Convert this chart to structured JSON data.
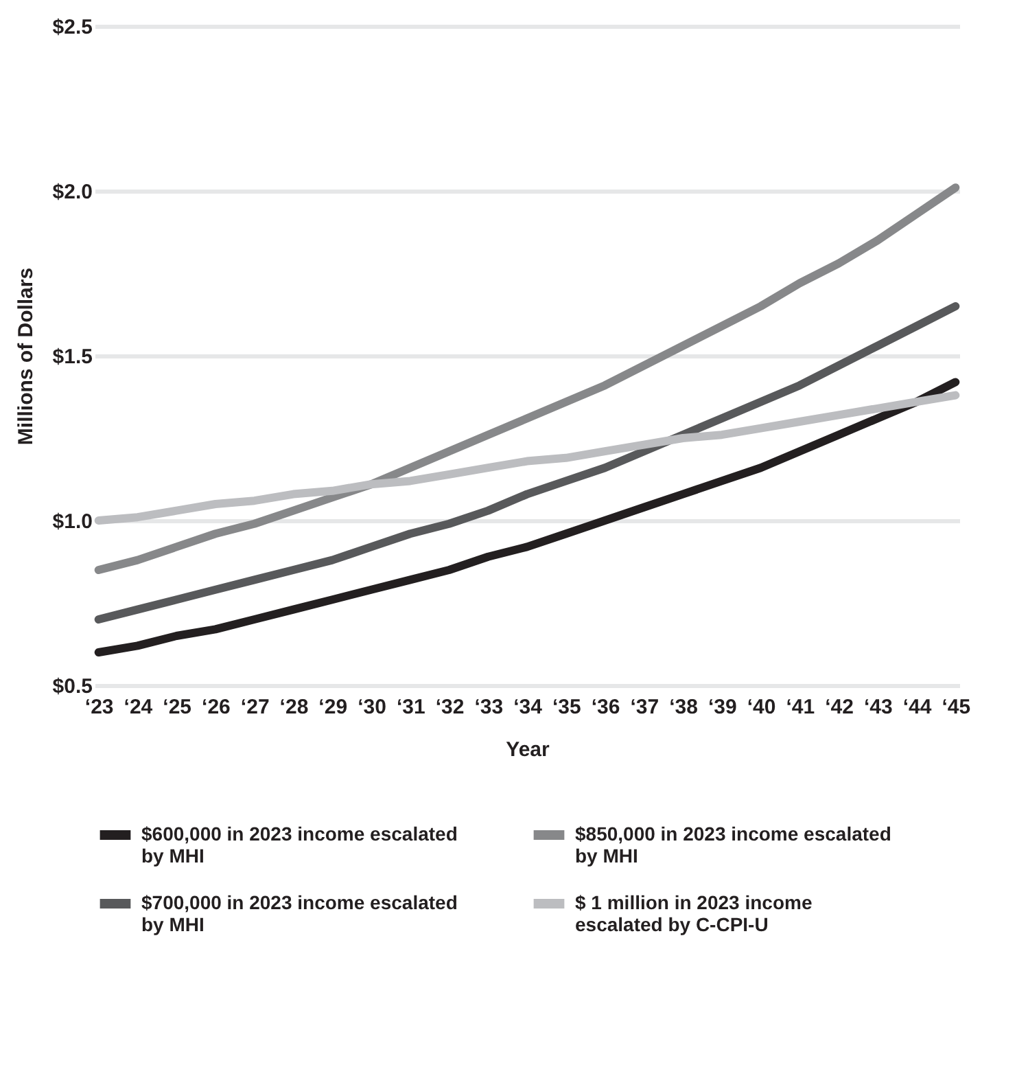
{
  "chart_data": {
    "type": "line",
    "xlabel": "Year",
    "ylabel": "Millions of Dollars",
    "categories": [
      "‘23",
      "‘24",
      "‘25",
      "‘26",
      "‘27",
      "‘28",
      "‘29",
      "‘30",
      "‘31",
      "‘32",
      "‘33",
      "‘34",
      "‘35",
      "‘36",
      "‘37",
      "‘38",
      "‘39",
      "‘40",
      "‘41",
      "‘42",
      "‘43",
      "‘44",
      "‘45"
    ],
    "series": [
      {
        "name": "$600,000 in 2023 income escalated by MHI",
        "color": "#231f20",
        "values": [
          0.6,
          0.62,
          0.65,
          0.67,
          0.7,
          0.73,
          0.76,
          0.79,
          0.82,
          0.85,
          0.89,
          0.92,
          0.96,
          1.0,
          1.04,
          1.08,
          1.12,
          1.16,
          1.21,
          1.26,
          1.31,
          1.36,
          1.42
        ]
      },
      {
        "name": "$850,000 in 2023 income escalated by MHI",
        "color": "#87888a",
        "values": [
          0.85,
          0.88,
          0.92,
          0.96,
          0.99,
          1.03,
          1.07,
          1.11,
          1.16,
          1.21,
          1.26,
          1.31,
          1.36,
          1.41,
          1.47,
          1.53,
          1.59,
          1.65,
          1.72,
          1.78,
          1.85,
          1.93,
          2.01
        ]
      },
      {
        "name": "$700,000 in 2023 income escalated by MHI",
        "color": "#58595b",
        "values": [
          0.7,
          0.73,
          0.76,
          0.79,
          0.82,
          0.85,
          0.88,
          0.92,
          0.96,
          0.99,
          1.03,
          1.08,
          1.12,
          1.16,
          1.21,
          1.26,
          1.31,
          1.36,
          1.41,
          1.47,
          1.53,
          1.59,
          1.65
        ]
      },
      {
        "name": "$ 1 million in 2023 income escalated by C-CPI-U",
        "color": "#bcbdc0",
        "values": [
          1.0,
          1.01,
          1.03,
          1.05,
          1.06,
          1.08,
          1.09,
          1.11,
          1.12,
          1.14,
          1.16,
          1.18,
          1.19,
          1.21,
          1.23,
          1.25,
          1.26,
          1.28,
          1.3,
          1.32,
          1.34,
          1.36,
          1.38
        ]
      }
    ],
    "ylim": [
      0.5,
      2.5
    ],
    "yticks": [
      {
        "value": 0.5,
        "label": "$0.5"
      },
      {
        "value": 1.0,
        "label": "$1.0"
      },
      {
        "value": 1.5,
        "label": "$1.5"
      },
      {
        "value": 2.0,
        "label": "$2.0"
      },
      {
        "value": 2.5,
        "label": "$2.5"
      }
    ],
    "grid": "y",
    "legend": "bottom",
    "marker": "none",
    "line_style": "solid"
  }
}
